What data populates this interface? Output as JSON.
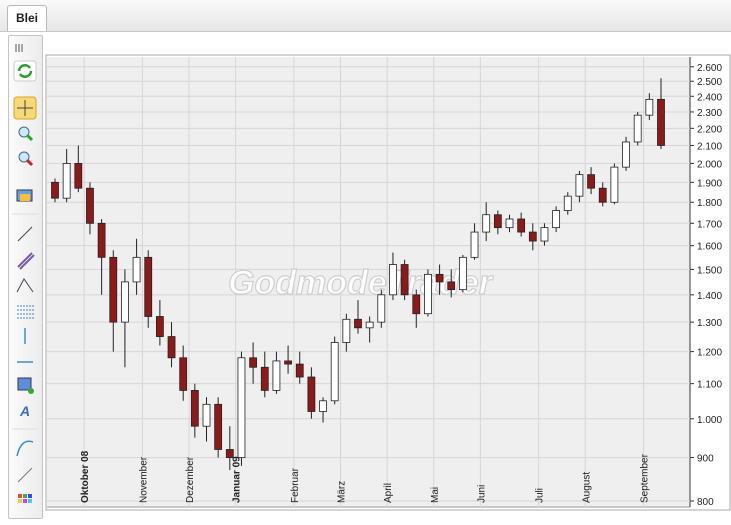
{
  "tab": "Blei",
  "chart_data": {
    "type": "candlestick",
    "watermark": "GodmodeTrader",
    "categories": [
      null,
      null,
      null,
      "Oktober 08",
      null,
      null,
      null,
      null,
      "November",
      null,
      null,
      null,
      "Dezember",
      null,
      null,
      null,
      "Januar 09",
      null,
      null,
      null,
      null,
      "Februar",
      null,
      null,
      null,
      "März",
      null,
      null,
      null,
      "April",
      null,
      null,
      null,
      "Mai",
      null,
      null,
      null,
      "Juni",
      null,
      null,
      null,
      null,
      "Juli",
      null,
      null,
      null,
      "August",
      null,
      null,
      null,
      null,
      "September",
      null
    ],
    "open": [
      1900,
      1820,
      2000,
      1870,
      1700,
      1550,
      1300,
      1450,
      1550,
      1320,
      1250,
      1180,
      1080,
      980,
      1040,
      920,
      900,
      1180,
      1150,
      1080,
      1170,
      1160,
      1120,
      1020,
      1050,
      1230,
      1310,
      1280,
      1300,
      1400,
      1520,
      1400,
      1330,
      1480,
      1450,
      1420,
      1550,
      1660,
      1740,
      1680,
      1720,
      1660,
      1620,
      1680,
      1760,
      1830,
      1940,
      1870,
      1800,
      1980,
      2120,
      2280,
      2380
    ],
    "high": [
      1920,
      2080,
      2100,
      1900,
      1720,
      1580,
      1500,
      1630,
      1580,
      1380,
      1300,
      1220,
      1100,
      1060,
      1060,
      980,
      1200,
      1230,
      1200,
      1200,
      1220,
      1200,
      1150,
      1060,
      1250,
      1330,
      1380,
      1320,
      1420,
      1570,
      1540,
      1420,
      1500,
      1520,
      1500,
      1560,
      1700,
      1800,
      1760,
      1740,
      1750,
      1700,
      1700,
      1780,
      1850,
      1960,
      1980,
      1900,
      2000,
      2150,
      2300,
      2420,
      2520
    ],
    "low": [
      1800,
      1800,
      1850,
      1650,
      1400,
      1200,
      1150,
      1400,
      1280,
      1220,
      1150,
      1050,
      950,
      940,
      900,
      870,
      880,
      1100,
      1060,
      1070,
      1130,
      1100,
      1000,
      990,
      1040,
      1200,
      1260,
      1230,
      1280,
      1380,
      1380,
      1280,
      1320,
      1400,
      1390,
      1410,
      1540,
      1620,
      1650,
      1660,
      1640,
      1580,
      1600,
      1660,
      1740,
      1800,
      1840,
      1780,
      1790,
      1960,
      2100,
      2250,
      2080
    ],
    "close": [
      1820,
      2000,
      1870,
      1700,
      1550,
      1300,
      1450,
      1550,
      1320,
      1250,
      1180,
      1080,
      980,
      1040,
      920,
      900,
      1180,
      1150,
      1080,
      1170,
      1160,
      1120,
      1020,
      1050,
      1230,
      1310,
      1280,
      1300,
      1400,
      1520,
      1400,
      1330,
      1480,
      1450,
      1420,
      1550,
      1660,
      1740,
      1680,
      1720,
      1660,
      1620,
      1680,
      1760,
      1830,
      1940,
      1870,
      1800,
      1980,
      2120,
      2280,
      2380,
      2100
    ],
    "up_color": "#ffffff",
    "down_color": "#8b1a1a",
    "ylim": [
      787,
      2670
    ],
    "log_scale": true,
    "grid": true,
    "yticks": [
      800,
      900,
      {
        "value": 1000,
        "label": "1.000"
      },
      {
        "value": 1100,
        "label": "1.100"
      },
      {
        "value": 1200,
        "label": "1.200"
      },
      {
        "value": 1300,
        "label": "1.300"
      },
      {
        "value": 1400,
        "label": "1.400"
      },
      {
        "value": 1500,
        "label": "1.500"
      },
      {
        "value": 1600,
        "label": "1.600"
      },
      {
        "value": 1700,
        "label": "1.700"
      },
      {
        "value": 1800,
        "label": "1.800"
      },
      {
        "value": 1900,
        "label": "1.900"
      },
      {
        "value": 2000,
        "label": "2.000"
      },
      {
        "value": 2100,
        "label": "2.100"
      },
      {
        "value": 2200,
        "label": "2.200"
      },
      {
        "value": 2300,
        "label": "2.300"
      },
      {
        "value": 2400,
        "label": "2.400"
      },
      {
        "value": 2500,
        "label": "2.500"
      },
      {
        "value": 2600,
        "label": "2.600"
      }
    ]
  }
}
